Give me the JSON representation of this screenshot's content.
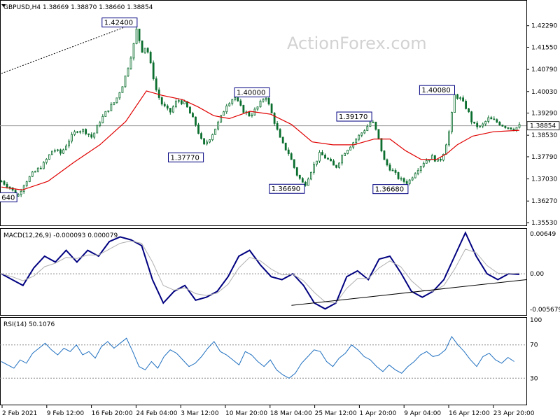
{
  "watermark": "ActionForex.com",
  "colors": {
    "candle": "#0b6e2e",
    "ma": "#e00000",
    "macd": "#000080",
    "signal": "#b0b0b0",
    "rsi": "#1f6fbf",
    "label_border": "#000080",
    "grid": "#9a9a9a"
  },
  "chart_data": [
    {
      "type": "candlestick",
      "panel": "price",
      "header": "GBPUSD,H4  1.38669 1.38870 1.38660 1.38854",
      "symbol": "GBPUSD",
      "timeframe": "H4",
      "ohlc_last": {
        "open": 1.38669,
        "high": 1.3887,
        "low": 1.3866,
        "close": 1.38854
      },
      "current_price_label": "1.38854",
      "y_ticks": [
        "1.42290",
        "1.41550",
        "1.40790",
        "1.40030",
        "1.39290",
        "1.38530",
        "1.37790",
        "1.37030",
        "1.36270",
        "1.35530"
      ],
      "ylim": [
        1.3553,
        1.4298
      ],
      "x_labels": [
        "2 Feb 2021",
        "9 Feb 12:00",
        "16 Feb 20:00",
        "24 Feb 04:00",
        "3 Mar 12:00",
        "10 Mar 20:00",
        "18 Mar 04:00",
        "25 Mar 12:00",
        "1 Apr 20:00",
        "9 Apr 04:00",
        "16 Apr 12:00",
        "23 Apr 20:00"
      ],
      "close_path": [
        [
          0,
          1.3695
        ],
        [
          0.018,
          1.3672
        ],
        [
          0.03,
          1.364
        ],
        [
          0.045,
          1.369
        ],
        [
          0.06,
          1.372
        ],
        [
          0.08,
          1.375
        ],
        [
          0.1,
          1.3805
        ],
        [
          0.115,
          1.379
        ],
        [
          0.13,
          1.3835
        ],
        [
          0.145,
          1.387
        ],
        [
          0.16,
          1.387
        ],
        [
          0.175,
          1.3845
        ],
        [
          0.19,
          1.39
        ],
        [
          0.205,
          1.394
        ],
        [
          0.22,
          1.397
        ],
        [
          0.235,
          1.403
        ],
        [
          0.245,
          1.409
        ],
        [
          0.255,
          1.416
        ],
        [
          0.262,
          1.4225
        ],
        [
          0.27,
          1.414
        ],
        [
          0.28,
          1.416
        ],
        [
          0.29,
          1.408
        ],
        [
          0.3,
          1.4
        ],
        [
          0.31,
          1.396
        ],
        [
          0.325,
          1.393
        ],
        [
          0.34,
          1.3975
        ],
        [
          0.355,
          1.396
        ],
        [
          0.375,
          1.389
        ],
        [
          0.39,
          1.3815
        ],
        [
          0.405,
          1.385
        ],
        [
          0.42,
          1.39
        ],
        [
          0.435,
          1.396
        ],
        [
          0.45,
          1.3985
        ],
        [
          0.465,
          1.394
        ],
        [
          0.48,
          1.392
        ],
        [
          0.495,
          1.395
        ],
        [
          0.51,
          1.399
        ],
        [
          0.525,
          1.391
        ],
        [
          0.54,
          1.383
        ],
        [
          0.555,
          1.379
        ],
        [
          0.57,
          1.372
        ],
        [
          0.585,
          1.368
        ],
        [
          0.6,
          1.374
        ],
        [
          0.615,
          1.379
        ],
        [
          0.63,
          1.377
        ],
        [
          0.645,
          1.374
        ],
        [
          0.66,
          1.379
        ],
        [
          0.675,
          1.382
        ],
        [
          0.69,
          1.385
        ],
        [
          0.705,
          1.388
        ],
        [
          0.715,
          1.3905
        ],
        [
          0.725,
          1.386
        ],
        [
          0.74,
          1.376
        ],
        [
          0.755,
          1.373
        ],
        [
          0.77,
          1.37
        ],
        [
          0.785,
          1.369
        ],
        [
          0.8,
          1.373
        ],
        [
          0.815,
          1.376
        ],
        [
          0.83,
          1.378
        ],
        [
          0.845,
          1.376
        ],
        [
          0.855,
          1.38
        ],
        [
          0.865,
          1.387
        ],
        [
          0.875,
          1.399
        ],
        [
          0.885,
          1.398
        ],
        [
          0.9,
          1.394
        ],
        [
          0.91,
          1.389
        ],
        [
          0.925,
          1.388
        ],
        [
          0.94,
          1.391
        ],
        [
          0.955,
          1.39
        ],
        [
          0.97,
          1.3885
        ],
        [
          0.98,
          1.388
        ],
        [
          0.99,
          1.3875
        ],
        [
          1,
          1.3885
        ]
      ],
      "ma_path": [
        [
          0,
          1.3675
        ],
        [
          0.04,
          1.3665
        ],
        [
          0.09,
          1.3695
        ],
        [
          0.14,
          1.376
        ],
        [
          0.19,
          1.382
        ],
        [
          0.24,
          1.39
        ],
        [
          0.28,
          1.4005
        ],
        [
          0.31,
          1.399
        ],
        [
          0.35,
          1.3975
        ],
        [
          0.38,
          1.395
        ],
        [
          0.41,
          1.392
        ],
        [
          0.44,
          1.391
        ],
        [
          0.48,
          1.3935
        ],
        [
          0.52,
          1.3925
        ],
        [
          0.56,
          1.389
        ],
        [
          0.6,
          1.383
        ],
        [
          0.64,
          1.382
        ],
        [
          0.68,
          1.382
        ],
        [
          0.72,
          1.384
        ],
        [
          0.75,
          1.384
        ],
        [
          0.78,
          1.38
        ],
        [
          0.81,
          1.377
        ],
        [
          0.84,
          1.377
        ],
        [
          0.86,
          1.379
        ],
        [
          0.88,
          1.382
        ],
        [
          0.91,
          1.385
        ],
        [
          0.95,
          1.3865
        ],
        [
          1,
          1.387
        ]
      ],
      "annotations": [
        {
          "text": "1.42400",
          "x": 0.262,
          "y": 1.424,
          "side": "left"
        },
        {
          "text": "1.40000",
          "x": 0.45,
          "y": 1.4,
          "side": "right"
        },
        {
          "text": "1.39170",
          "x": 0.715,
          "y": 1.3917,
          "side": "left"
        },
        {
          "text": "1.40080",
          "x": 0.875,
          "y": 1.4008,
          "side": "left"
        },
        {
          "text": "1.37770",
          "x": 0.39,
          "y": 1.3777,
          "side": "left"
        },
        {
          "text": "1.36690",
          "x": 0.585,
          "y": 1.3669,
          "side": "left"
        },
        {
          "text": "1.36680",
          "x": 0.785,
          "y": 1.3668,
          "side": "left"
        },
        {
          "text": "640",
          "x": 0.03,
          "y": 1.364,
          "side": "left"
        }
      ],
      "trendline": {
        "from": [
          0,
          1.4065
        ],
        "to": [
          0.262,
          1.424
        ],
        "style": "dashed"
      }
    },
    {
      "type": "line",
      "panel": "macd",
      "header": "MACD(12,26,9) -0.000093 0.000079",
      "y_ticks": [
        "0.00649",
        "0.00",
        "-0.005679"
      ],
      "ylim": [
        -0.0068,
        0.0073
      ],
      "series": [
        {
          "role": "macd",
          "values": [
            0.0,
            -0.001,
            -0.002,
            0.001,
            0.003,
            0.002,
            0.004,
            0.002,
            0.004,
            0.003,
            0.0055,
            0.0063,
            0.0058,
            0.0048,
            -0.001,
            -0.005,
            -0.003,
            -0.002,
            -0.0045,
            -0.004,
            -0.003,
            -0.0005,
            0.003,
            0.004,
            0.0015,
            -0.0005,
            -0.001,
            0.0,
            -0.002,
            -0.005,
            -0.006,
            -0.005,
            -0.0005,
            0.0005,
            -0.001,
            0.0025,
            0.003,
            0.0002,
            -0.003,
            -0.004,
            -0.003,
            -0.001,
            0.003,
            0.007,
            0.003,
            0.0,
            -0.001,
            0.0,
            -0.0001
          ]
        },
        {
          "role": "signal",
          "values": [
            0.0,
            -0.0005,
            -0.0012,
            -0.0004,
            0.0012,
            0.0018,
            0.0028,
            0.0026,
            0.0032,
            0.0032,
            0.0042,
            0.0052,
            0.0056,
            0.0052,
            0.002,
            -0.002,
            -0.0028,
            -0.0024,
            -0.0034,
            -0.0037,
            -0.0033,
            -0.0018,
            0.001,
            0.0028,
            0.0022,
            0.0008,
            -0.0002,
            -0.0001,
            -0.0012,
            -0.0032,
            -0.0048,
            -0.005,
            -0.0025,
            -0.0008,
            -0.0008,
            0.001,
            0.0022,
            0.0012,
            -0.0012,
            -0.0028,
            -0.003,
            -0.002,
            0.0008,
            0.0042,
            0.0036,
            0.0014,
            0.0001,
            0.0,
            0.0001
          ]
        }
      ],
      "trendline": {
        "from": [
          0.56,
          -0.0054
        ],
        "to": [
          1,
          -0.001
        ]
      }
    },
    {
      "type": "line",
      "panel": "rsi",
      "header": "RSI(14) 50.1076",
      "y_ticks": [
        "100",
        "70",
        "30"
      ],
      "ylim": [
        0,
        100
      ],
      "levels": [
        70,
        30
      ],
      "series": [
        {
          "role": "rsi",
          "values": [
            50,
            46,
            42,
            52,
            48,
            60,
            66,
            72,
            64,
            58,
            66,
            62,
            70,
            58,
            62,
            54,
            68,
            74,
            66,
            72,
            78,
            62,
            44,
            40,
            50,
            42,
            56,
            64,
            60,
            52,
            44,
            48,
            56,
            66,
            74,
            62,
            58,
            52,
            46,
            62,
            58,
            50,
            44,
            52,
            40,
            34,
            30,
            36,
            48,
            56,
            64,
            62,
            50,
            44,
            54,
            60,
            70,
            64,
            56,
            52,
            44,
            38,
            46,
            40,
            36,
            44,
            50,
            58,
            62,
            56,
            58,
            64,
            80,
            70,
            62,
            52,
            44,
            56,
            60,
            52,
            48,
            55,
            50
          ]
        }
      ]
    }
  ]
}
